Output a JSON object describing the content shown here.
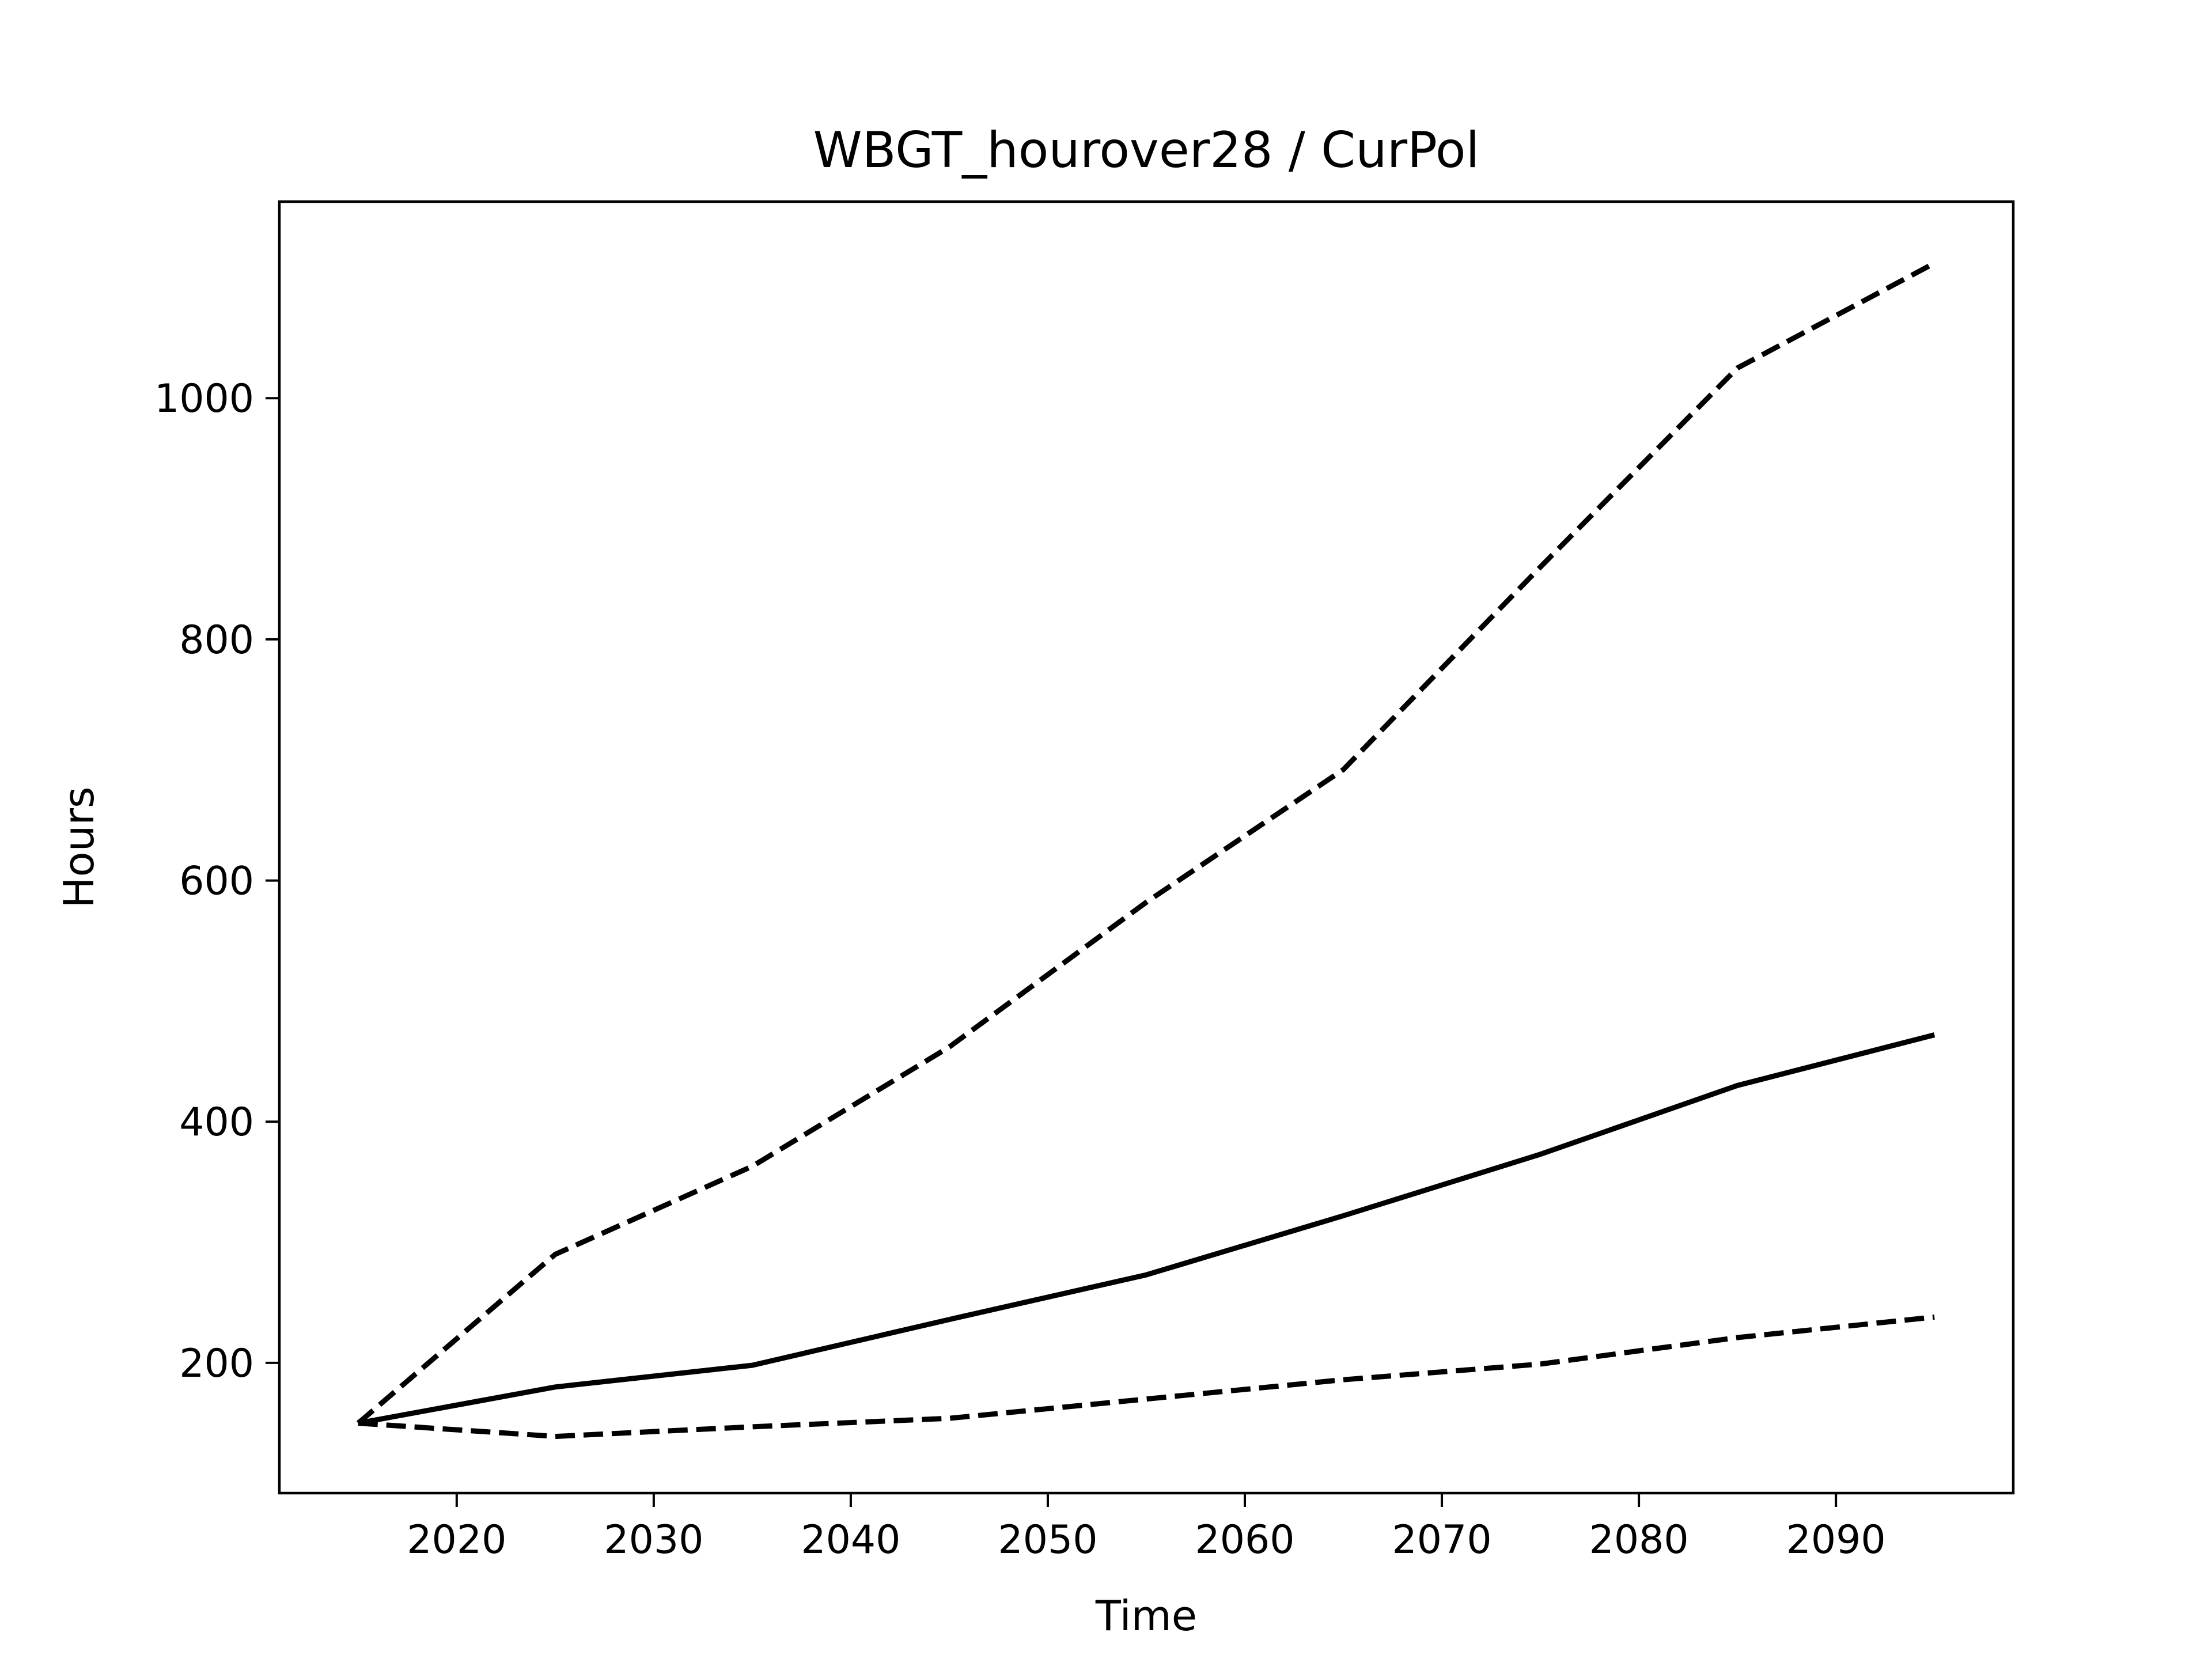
{
  "chart_data": {
    "type": "line",
    "title": "WBGT_hourover28 / CurPol",
    "xlabel": "Time",
    "ylabel": "Hours",
    "xlim": [
      2011,
      2099
    ],
    "ylim": [
      92,
      1163
    ],
    "xticks": [
      2020,
      2030,
      2040,
      2050,
      2060,
      2070,
      2080,
      2090
    ],
    "yticks": [
      200,
      400,
      600,
      800,
      1000
    ],
    "grid": false,
    "legend": "none",
    "x": [
      2015,
      2025,
      2035,
      2045,
      2055,
      2065,
      2075,
      2085,
      2095
    ],
    "series": [
      {
        "style": "dashed",
        "color": "#000000",
        "values": [
          150,
          290,
          363,
          462,
          582,
          692,
          860,
          1025,
          1112
        ]
      },
      {
        "style": "solid",
        "color": "#000000",
        "values": [
          150,
          180,
          198,
          236,
          273,
          322,
          373,
          430,
          472
        ]
      },
      {
        "style": "dashed",
        "color": "#000000",
        "values": [
          150,
          139,
          147,
          154,
          170,
          186,
          199,
          221,
          238
        ]
      }
    ]
  }
}
